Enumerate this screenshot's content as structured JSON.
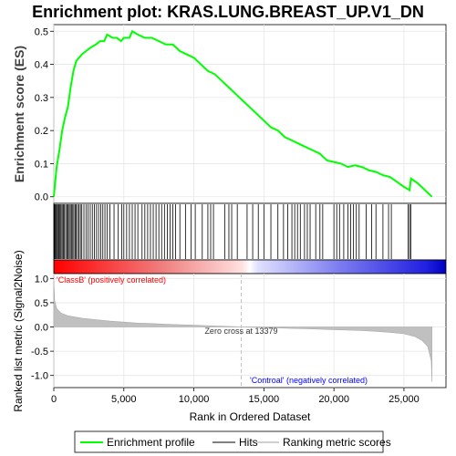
{
  "chart_data": {
    "type": "line",
    "title": "Enrichment plot: KRAS.LUNG.BREAST_UP.V1_DN",
    "colors": {
      "profile": "#00ff00",
      "hits": "#000000",
      "metric_fill": "#c0c0c0",
      "pos_label": "#ff0000",
      "neg_label": "#0000ff",
      "zero_line": "#c0c0c0"
    },
    "es_panel": {
      "ylabel": "Enrichment score (ES)",
      "ylim": [
        -0.02,
        0.52
      ],
      "yticks": [
        "0.0",
        "0.1",
        "0.2",
        "0.3",
        "0.4",
        "0.5"
      ],
      "ytick_values": [
        0.0,
        0.1,
        0.2,
        0.3,
        0.4,
        0.5
      ],
      "profile": [
        [
          0,
          0.0
        ],
        [
          200,
          0.09
        ],
        [
          400,
          0.14
        ],
        [
          600,
          0.2
        ],
        [
          800,
          0.24
        ],
        [
          1000,
          0.27
        ],
        [
          1200,
          0.33
        ],
        [
          1400,
          0.38
        ],
        [
          1600,
          0.41
        ],
        [
          1800,
          0.42
        ],
        [
          2000,
          0.43
        ],
        [
          2300,
          0.44
        ],
        [
          2600,
          0.45
        ],
        [
          3000,
          0.46
        ],
        [
          3300,
          0.47
        ],
        [
          3600,
          0.47
        ],
        [
          3800,
          0.49
        ],
        [
          4200,
          0.48
        ],
        [
          4500,
          0.48
        ],
        [
          4800,
          0.47
        ],
        [
          5000,
          0.48
        ],
        [
          5400,
          0.48
        ],
        [
          5600,
          0.5
        ],
        [
          6000,
          0.49
        ],
        [
          6500,
          0.48
        ],
        [
          7000,
          0.48
        ],
        [
          7500,
          0.47
        ],
        [
          8000,
          0.46
        ],
        [
          8500,
          0.46
        ],
        [
          9000,
          0.44
        ],
        [
          9500,
          0.43
        ],
        [
          10000,
          0.42
        ],
        [
          10500,
          0.4
        ],
        [
          11000,
          0.38
        ],
        [
          11500,
          0.37
        ],
        [
          12000,
          0.35
        ],
        [
          12500,
          0.33
        ],
        [
          13000,
          0.31
        ],
        [
          13500,
          0.29
        ],
        [
          14000,
          0.27
        ],
        [
          14500,
          0.25
        ],
        [
          15000,
          0.23
        ],
        [
          15500,
          0.21
        ],
        [
          16000,
          0.2
        ],
        [
          16500,
          0.18
        ],
        [
          17000,
          0.17
        ],
        [
          17500,
          0.16
        ],
        [
          18000,
          0.15
        ],
        [
          18500,
          0.14
        ],
        [
          19000,
          0.13
        ],
        [
          19500,
          0.11
        ],
        [
          20000,
          0.105
        ],
        [
          20500,
          0.1
        ],
        [
          21000,
          0.09
        ],
        [
          21500,
          0.095
        ],
        [
          22000,
          0.09
        ],
        [
          22500,
          0.08
        ],
        [
          23000,
          0.075
        ],
        [
          23500,
          0.065
        ],
        [
          24000,
          0.06
        ],
        [
          24500,
          0.045
        ],
        [
          25000,
          0.03
        ],
        [
          25400,
          0.02
        ],
        [
          25500,
          0.055
        ],
        [
          26000,
          0.04
        ],
        [
          26500,
          0.02
        ],
        [
          27000,
          0.0
        ]
      ]
    },
    "hits_panel": {
      "hit_ranks": [
        20,
        60,
        120,
        180,
        250,
        320,
        380,
        450,
        520,
        600,
        680,
        760,
        850,
        940,
        1020,
        1100,
        1180,
        1260,
        1350,
        1430,
        1520,
        1600,
        1700,
        1800,
        1900,
        2000,
        2150,
        2300,
        2450,
        2600,
        2750,
        2900,
        3050,
        3200,
        3350,
        3500,
        3650,
        3800,
        4000,
        4300,
        4600,
        4850,
        5000,
        5200,
        5400,
        5600,
        5800,
        6000,
        6300,
        6500,
        6700,
        6900,
        7100,
        7300,
        7500,
        7700,
        7900,
        8100,
        8300,
        8500,
        8700,
        9000,
        9400,
        9800,
        10100,
        10600,
        11000,
        11200,
        11400,
        12200,
        12500,
        12700,
        13100,
        13800,
        14200,
        14600,
        15000,
        15500,
        16000,
        16400,
        16700,
        17000,
        17200,
        17400,
        17600,
        17900,
        18100,
        18300,
        18700,
        19000,
        19200,
        20000,
        20200,
        20400,
        20700,
        21000,
        21200,
        21400,
        21600,
        21800,
        22300,
        22700,
        23000,
        23500,
        23900,
        24100,
        25300,
        25400,
        25500
      ]
    },
    "metric_panel": {
      "ylabel": "Ranked list metric (Signal2Noise)",
      "ylim": [
        -1.25,
        1.1
      ],
      "yticks": [
        "1.0",
        "0.5",
        "0.0",
        "-0.5",
        "-1.0"
      ],
      "ytick_values": [
        1.0,
        0.5,
        0.0,
        -0.5,
        -1.0
      ],
      "curve": [
        [
          0,
          0.95
        ],
        [
          60,
          0.55
        ],
        [
          200,
          0.38
        ],
        [
          500,
          0.29
        ],
        [
          1000,
          0.23
        ],
        [
          2000,
          0.18
        ],
        [
          3000,
          0.15
        ],
        [
          4000,
          0.12
        ],
        [
          5000,
          0.1
        ],
        [
          6000,
          0.08
        ],
        [
          7000,
          0.07
        ],
        [
          8000,
          0.055
        ],
        [
          9000,
          0.045
        ],
        [
          10000,
          0.035
        ],
        [
          11000,
          0.025
        ],
        [
          12000,
          0.015
        ],
        [
          13000,
          0.005
        ],
        [
          13379,
          0.0
        ],
        [
          14000,
          -0.005
        ],
        [
          15000,
          -0.015
        ],
        [
          16000,
          -0.02
        ],
        [
          17000,
          -0.03
        ],
        [
          18000,
          -0.035
        ],
        [
          19000,
          -0.045
        ],
        [
          20000,
          -0.055
        ],
        [
          21000,
          -0.065
        ],
        [
          22000,
          -0.075
        ],
        [
          23000,
          -0.09
        ],
        [
          24000,
          -0.11
        ],
        [
          25000,
          -0.14
        ],
        [
          25800,
          -0.2
        ],
        [
          26300,
          -0.28
        ],
        [
          26700,
          -0.4
        ],
        [
          26950,
          -0.7
        ],
        [
          27000,
          -1.13
        ]
      ],
      "zero_cross_rank": 13379,
      "zero_cross_label": "Zero cross at 13379",
      "pos_label": "'ClassB' (positively correlated)",
      "neg_label": "'Controal' (negatively correlated)"
    },
    "x_axis": {
      "xlabel": "Rank in Ordered Dataset",
      "xlim": [
        0,
        28000
      ],
      "xticks": [
        "0",
        "5,000",
        "10,000",
        "15,000",
        "20,000",
        "25,000"
      ],
      "xtick_values": [
        0,
        5000,
        10000,
        15000,
        20000,
        25000
      ],
      "total_ranks": 27000
    },
    "legend": {
      "placement": "bottom",
      "items": [
        {
          "label": "Enrichment profile",
          "color": "#00ff00"
        },
        {
          "label": "Hits",
          "color": "#808080"
        },
        {
          "label": "Ranking metric scores",
          "color": "#d0d0d0"
        }
      ]
    }
  }
}
